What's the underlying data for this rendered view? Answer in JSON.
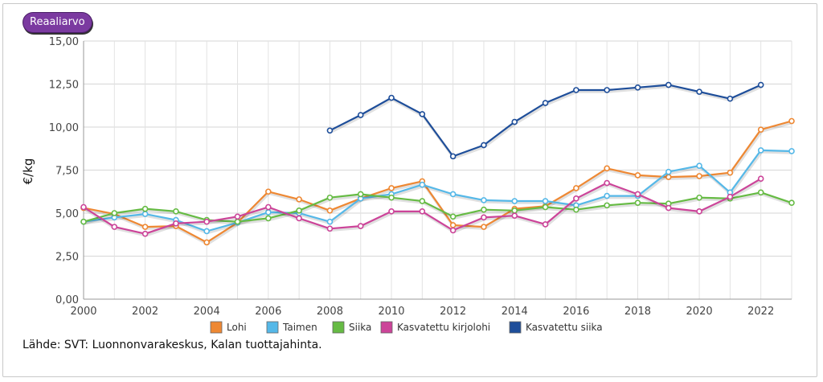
{
  "badge": {
    "label": "Reaaliarvo"
  },
  "source": "Lähde: SVT: Luonnonvarakeskus, Kalan tuottajahinta.",
  "chart_data": {
    "type": "line",
    "title": "",
    "xlabel": "",
    "ylabel": "€/kg",
    "xlim": [
      2000,
      2023
    ],
    "ylim": [
      0,
      15
    ],
    "x_ticks": [
      2000,
      2002,
      2004,
      2006,
      2008,
      2010,
      2012,
      2014,
      2016,
      2018,
      2020,
      2022
    ],
    "y_ticks": [
      "0,00",
      "2,50",
      "5,00",
      "7,50",
      "10,00",
      "12,50",
      "15,00"
    ],
    "grid": true,
    "legend_position": "bottom",
    "x": [
      2000,
      2001,
      2002,
      2003,
      2004,
      2005,
      2006,
      2007,
      2008,
      2009,
      2010,
      2011,
      2012,
      2013,
      2014,
      2015,
      2016,
      2017,
      2018,
      2019,
      2020,
      2021,
      2022,
      2023
    ],
    "series": [
      {
        "name": "Lohi",
        "color": "#ee8833",
        "values": [
          5.3,
          4.95,
          4.2,
          4.25,
          3.3,
          4.45,
          6.25,
          5.8,
          5.15,
          5.85,
          6.45,
          6.85,
          4.3,
          4.2,
          5.25,
          5.4,
          6.45,
          7.6,
          7.2,
          7.1,
          7.15,
          7.35,
          9.85,
          10.35
        ]
      },
      {
        "name": "Taimen",
        "color": "#55b8e8",
        "values": [
          4.5,
          4.75,
          4.95,
          4.6,
          3.95,
          4.45,
          5.05,
          5.0,
          4.5,
          5.85,
          6.1,
          6.65,
          6.1,
          5.75,
          5.7,
          5.7,
          5.45,
          6.0,
          6.0,
          7.4,
          7.75,
          6.2,
          8.65,
          8.6
        ]
      },
      {
        "name": "Siika",
        "color": "#66bb44",
        "values": [
          4.5,
          5.0,
          5.25,
          5.1,
          4.6,
          4.5,
          4.7,
          5.15,
          5.9,
          6.1,
          5.9,
          5.7,
          4.8,
          5.2,
          5.15,
          5.35,
          5.2,
          5.45,
          5.6,
          5.55,
          5.9,
          5.85,
          6.2,
          5.6
        ]
      },
      {
        "name": "Kasvatettu kirjolohi",
        "color": "#cc4499",
        "values": [
          5.35,
          4.2,
          3.8,
          4.4,
          4.5,
          4.8,
          5.35,
          4.7,
          4.1,
          4.25,
          5.1,
          5.1,
          4.0,
          4.75,
          4.85,
          4.35,
          5.85,
          6.75,
          6.1,
          5.3,
          5.1,
          5.95,
          7.0,
          null
        ]
      },
      {
        "name": "Kasvatettu siika",
        "color": "#1e4e9a",
        "values": [
          null,
          null,
          null,
          null,
          null,
          null,
          null,
          null,
          9.8,
          10.7,
          11.7,
          10.75,
          8.3,
          8.95,
          10.3,
          11.4,
          12.15,
          12.15,
          12.3,
          12.45,
          12.05,
          11.65,
          12.45,
          null
        ]
      }
    ]
  }
}
